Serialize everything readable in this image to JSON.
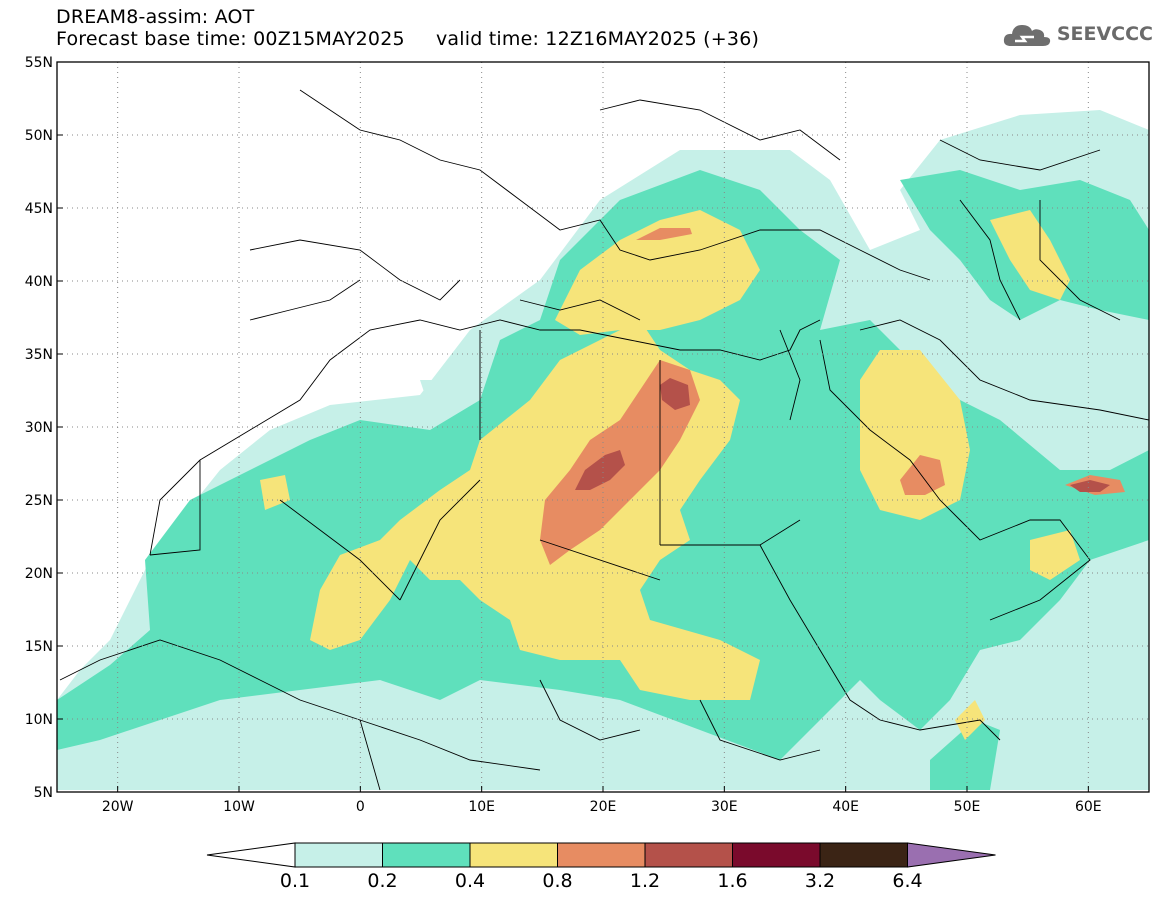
{
  "header": {
    "title": "DREAM8-assim: AOT",
    "base_time_label": "Forecast base time: 00Z15MAY2025",
    "valid_time_label": "valid time: 12Z16MAY2025 (+36)",
    "logo_text": "SEEVCCC",
    "logo_icon": "cloud-icon"
  },
  "map": {
    "lon_ticks": [
      "20W",
      "10W",
      "0",
      "10E",
      "20E",
      "30E",
      "40E",
      "50E",
      "60E"
    ],
    "lat_ticks": [
      "55N",
      "50N",
      "45N",
      "40N",
      "35N",
      "30N",
      "25N",
      "20N",
      "15N",
      "10N",
      "5N"
    ],
    "lon_range": [
      -25,
      65
    ],
    "lat_range": [
      5,
      55
    ],
    "grid": "dotted"
  },
  "colorbar": {
    "labels": [
      "0.1",
      "0.2",
      "0.4",
      "0.8",
      "1.2",
      "1.6",
      "3.2",
      "6.4"
    ],
    "colors": [
      "#c6f0e8",
      "#5fe0bc",
      "#f6e47a",
      "#e78c62",
      "#b4514a",
      "#7a0a2c",
      "#3b2415",
      "#9a6fb0"
    ],
    "under_color": "#ffffff"
  }
}
